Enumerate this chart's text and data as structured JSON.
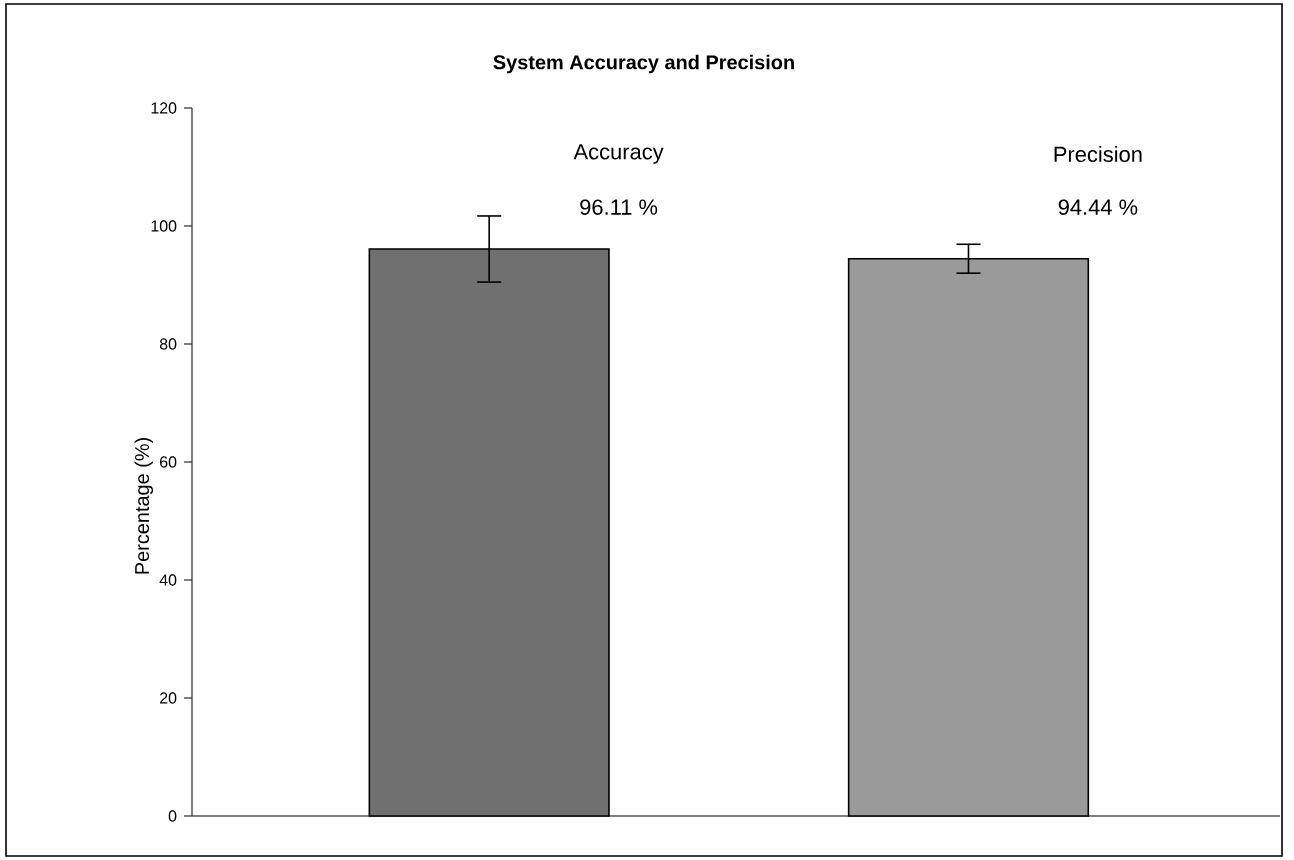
{
  "chart_data": {
    "type": "bar",
    "title": "System Accuracy and Precision",
    "ylabel": "Percentage (%)",
    "categories": [
      "Accuracy",
      "Precision"
    ],
    "values": [
      96.11,
      94.44
    ],
    "value_labels": [
      "96.11 %",
      "94.44 %"
    ],
    "colors": [
      "#707070",
      "#9a9a9a"
    ],
    "errors": [
      [
        90.5,
        101.7
      ],
      [
        92.0,
        96.9
      ]
    ],
    "ylim": [
      0,
      120
    ],
    "yticks": [
      0,
      20,
      40,
      60,
      80,
      100,
      120
    ],
    "grid": false
  }
}
